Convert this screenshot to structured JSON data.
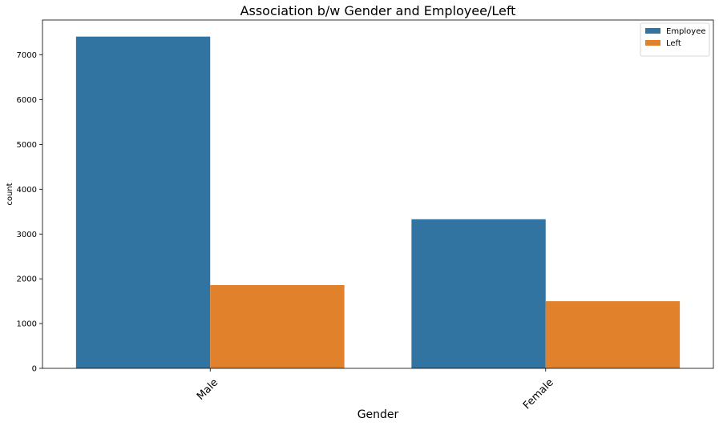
{
  "chart_data": {
    "type": "bar",
    "title": "Association b/w Gender and Employee/Left",
    "xlabel": "Gender",
    "ylabel": "count",
    "categories": [
      "Male",
      "Female"
    ],
    "series": [
      {
        "name": "Employee",
        "values": [
          7410,
          3330
        ],
        "color": "#3274a1"
      },
      {
        "name": "Left",
        "values": [
          1860,
          1500
        ],
        "color": "#e1812c"
      }
    ],
    "ylim": [
      0,
      7780
    ],
    "yticks": [
      0,
      1000,
      2000,
      3000,
      4000,
      5000,
      6000,
      7000
    ],
    "grid": false,
    "legend_position": "top-right"
  }
}
